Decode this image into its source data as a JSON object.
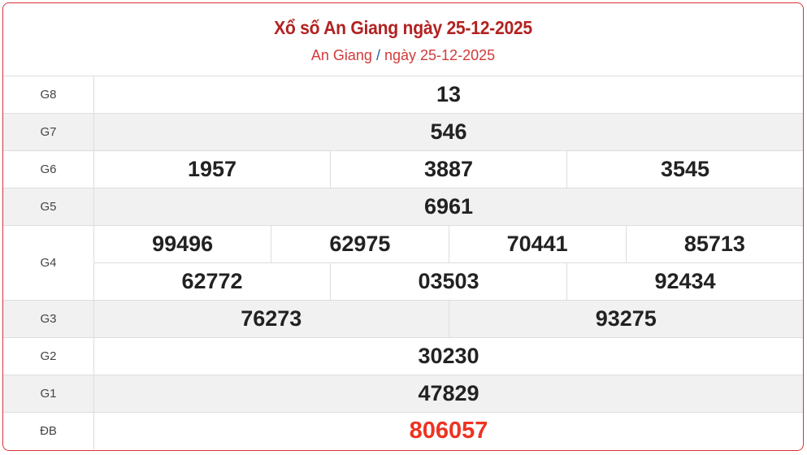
{
  "header": {
    "title": "Xổ số An Giang ngày 25-12-2025",
    "breadcrumb_province": "An Giang",
    "breadcrumb_separator": "/",
    "breadcrumb_date": "ngày 25-12-2025"
  },
  "colors": {
    "title": "#b22222",
    "special_prize": "#ee3322",
    "border": "#d9323a"
  },
  "prizes": [
    {
      "label": "G8",
      "lines": [
        [
          "13"
        ]
      ]
    },
    {
      "label": "G7",
      "lines": [
        [
          "546"
        ]
      ]
    },
    {
      "label": "G6",
      "lines": [
        [
          "1957",
          "3887",
          "3545"
        ]
      ]
    },
    {
      "label": "G5",
      "lines": [
        [
          "6961"
        ]
      ]
    },
    {
      "label": "G4",
      "lines": [
        [
          "99496",
          "62975",
          "70441",
          "85713"
        ],
        [
          "62772",
          "03503",
          "92434"
        ]
      ]
    },
    {
      "label": "G3",
      "lines": [
        [
          "76273",
          "93275"
        ]
      ]
    },
    {
      "label": "G2",
      "lines": [
        [
          "30230"
        ]
      ]
    },
    {
      "label": "G1",
      "lines": [
        [
          "47829"
        ]
      ]
    },
    {
      "label": "ĐB",
      "lines": [
        [
          "806057"
        ]
      ]
    }
  ]
}
